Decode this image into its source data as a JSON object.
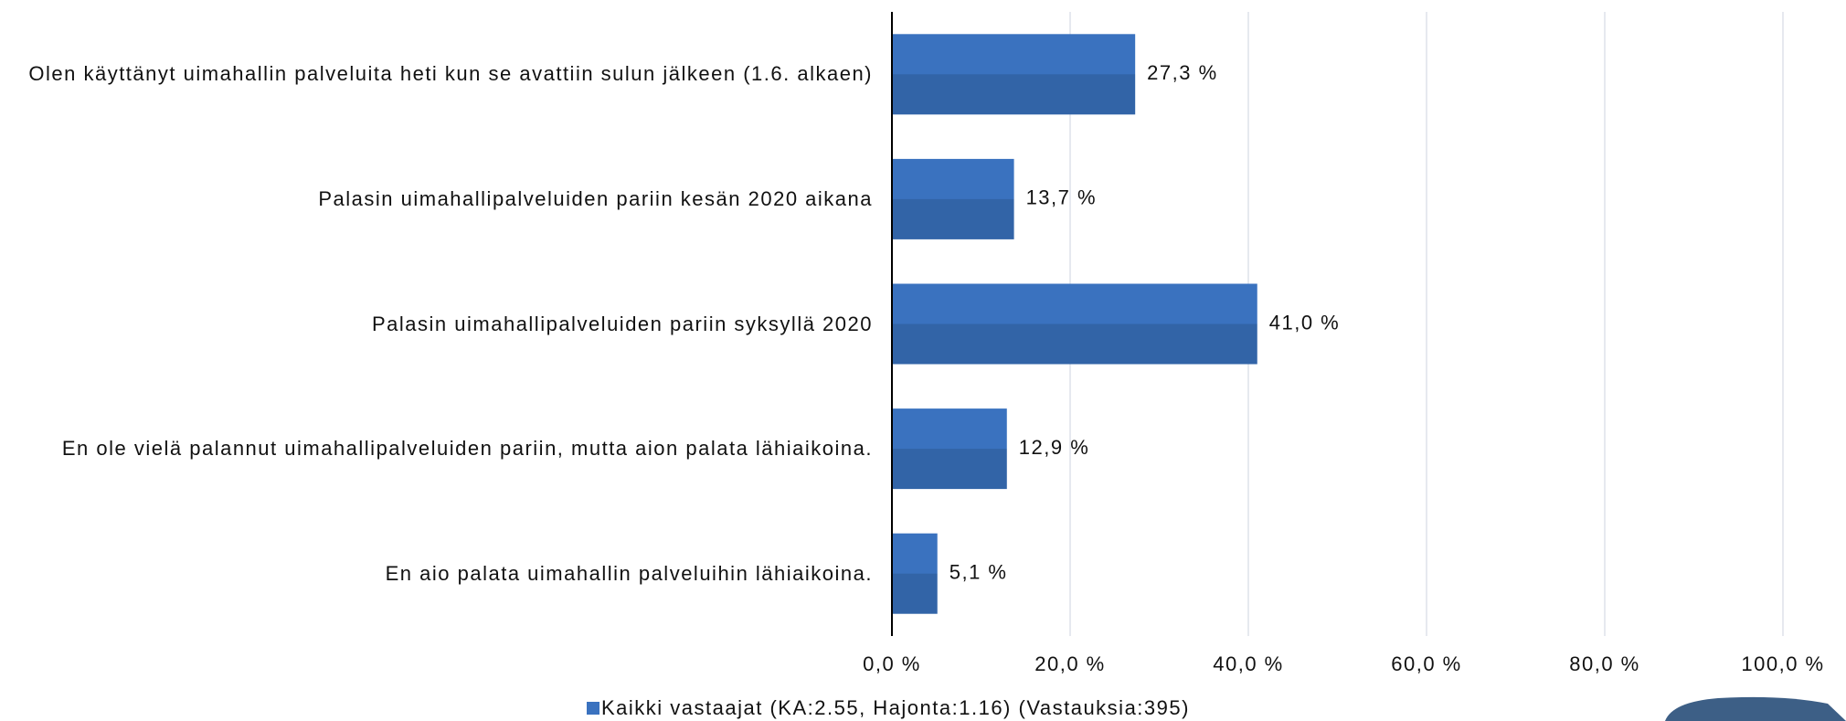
{
  "chart_data": {
    "type": "hbar",
    "categories": [
      "Olen käyttänyt uimahallin palveluita heti kun se avattiin sulun jälkeen (1.6. alkaen)",
      "Palasin uimahallipalveluiden pariin kesän 2020 aikana",
      "Palasin uimahallipalveluiden pariin syksyllä 2020",
      "En ole vielä palannut uimahallipalveluiden pariin, mutta aion palata lähiaikoina.",
      "En aio palata uimahallin palveluihin lähiaikoina."
    ],
    "series": [
      {
        "name": "Kaikki vastaajat (KA:2.55, Hajonta:1.16) (Vastauksia:395)",
        "color": "#3a72bf",
        "values": [
          27.3,
          13.7,
          41.0,
          12.9,
          5.1
        ],
        "value_labels": [
          "27,3 %",
          "13,7 %",
          "41,0 %",
          "12,9 %",
          "5,1 %"
        ]
      }
    ],
    "xlim": [
      0,
      100
    ],
    "xticks": [
      {
        "value": 0,
        "label": "0,0 %"
      },
      {
        "value": 20,
        "label": "20,0 %"
      },
      {
        "value": 40,
        "label": "40,0 %"
      },
      {
        "value": 60,
        "label": "60,0 %"
      },
      {
        "value": 80,
        "label": "80,0 %"
      },
      {
        "value": 100,
        "label": "100,0 %"
      }
    ],
    "grid": true,
    "legend": "bottom"
  }
}
